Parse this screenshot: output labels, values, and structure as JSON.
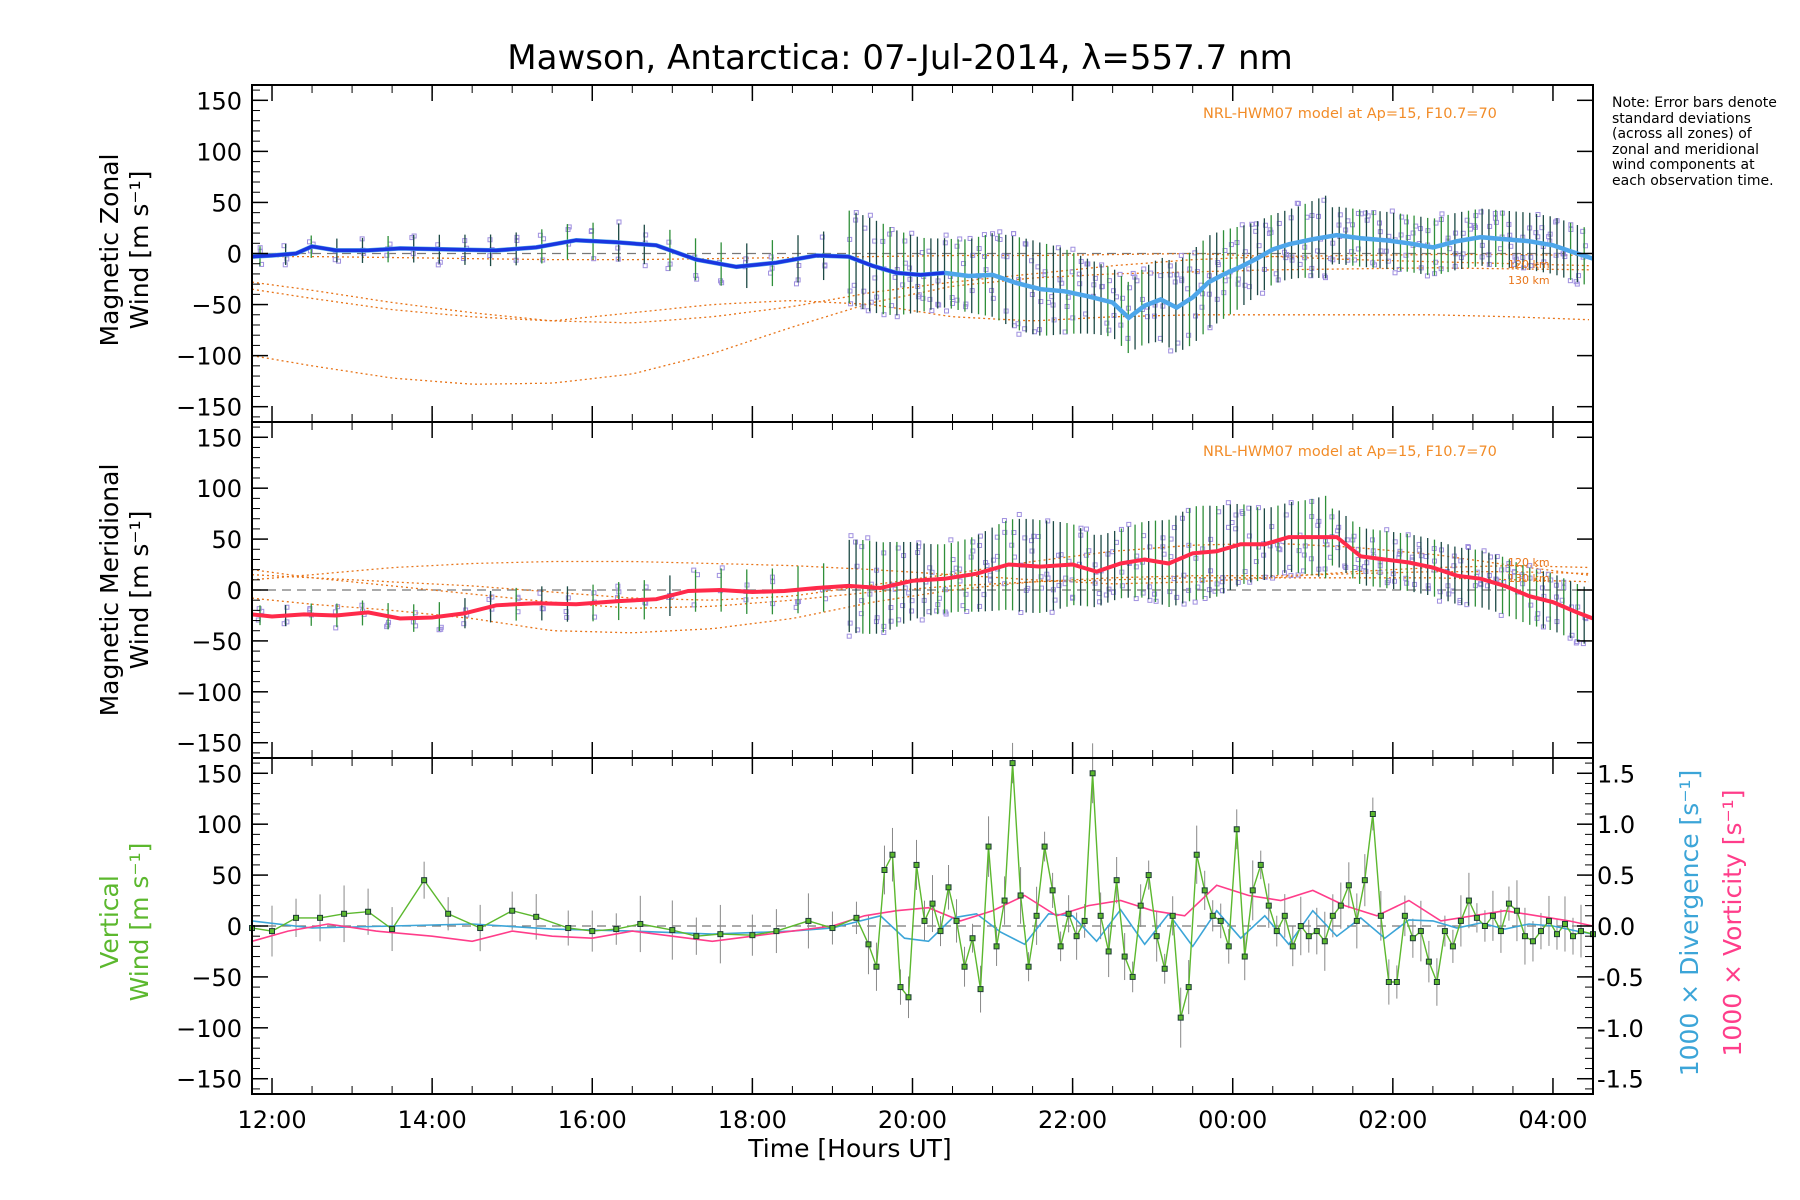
{
  "title": "Mawson, Antarctica: 07-Jul-2014, λ=557.7 nm",
  "note": "Note: Error bars denote standard deviations (across all zones) of zonal and meridional wind components at each observation time.",
  "model_label": "NRL-HWM07 model at Ap=15, F10.7=70",
  "altitude_labels": [
    "120 km",
    "130 km"
  ],
  "xlabel": "Time [Hours UT]",
  "colors": {
    "zonal": "#1a35e0",
    "zonal_light": "#4ea6ea",
    "meridional": "#ff2a4a",
    "model": "#e8751a",
    "vertical": "#5cb82e",
    "divergence": "#3ca5d8",
    "vorticity": "#ff3d8a",
    "raw": "#9f8fdf"
  },
  "chart_data": [
    {
      "type": "line",
      "name": "zonal",
      "ylabel_lines": [
        "Magnetic Zonal",
        "Wind [m s⁻¹]"
      ],
      "ylim": [
        -165,
        165
      ],
      "yticks": [
        -150,
        -100,
        -50,
        0,
        50,
        100,
        150
      ],
      "xlim": [
        11.75,
        28.5
      ],
      "xticks": [
        12,
        14,
        16,
        18,
        20,
        22,
        24,
        26,
        28
      ],
      "xticklabels": [
        "12:00",
        "14:00",
        "16:00",
        "18:00",
        "20:00",
        "22:00",
        "00:00",
        "02:00",
        "04:00"
      ],
      "series": [
        {
          "x": [
            11.75,
            12,
            12.3,
            12.5,
            12.8,
            13.2,
            13.6,
            14.2,
            14.8,
            15.3,
            15.8,
            16.3,
            16.8,
            17.3,
            17.8,
            18.3,
            18.8,
            19.2,
            19.5,
            19.8,
            20.1,
            20.4,
            20.7,
            21.0,
            21.3,
            21.6,
            21.9,
            22.2,
            22.5,
            22.7,
            22.9,
            23.1,
            23.3,
            23.5,
            23.7,
            23.9,
            24.1,
            24.3,
            24.5,
            24.7,
            25.0,
            25.3,
            25.6,
            25.9,
            26.2,
            26.5,
            26.8,
            27.1,
            27.4,
            27.7,
            28.0,
            28.3,
            28.5
          ],
          "y": [
            -3,
            -2,
            0,
            7,
            3,
            3,
            5,
            4,
            3,
            6,
            13,
            11,
            8,
            -6,
            -13,
            -9,
            -2,
            -3,
            -12,
            -19,
            -21,
            -19,
            -22,
            -21,
            -29,
            -35,
            -37,
            -42,
            -48,
            -63,
            -51,
            -45,
            -53,
            -43,
            -28,
            -20,
            -13,
            -5,
            4,
            9,
            14,
            18,
            15,
            13,
            10,
            6,
            12,
            16,
            14,
            12,
            8,
            0,
            -5
          ]
        }
      ],
      "model_curves_y": {
        "x": [
          11.75,
          12.5,
          13.5,
          14.5,
          15.5,
          16.5,
          17.5,
          18.5,
          19.5,
          20.5,
          21.5,
          22.5,
          23.5,
          24.5,
          25.5,
          26.5,
          27.5,
          28.5
        ],
        "curves": [
          [
            -28,
            -36,
            -48,
            -58,
            -66,
            -68,
            -62,
            -52,
            -38,
            -28,
            -20,
            -12,
            -6,
            -3,
            -2,
            -1,
            -1,
            -2
          ],
          [
            -100,
            -110,
            -122,
            -128,
            -127,
            -118,
            -98,
            -72,
            -48,
            -32,
            -24,
            -20,
            -18,
            -16,
            -15,
            -14,
            -15,
            -16
          ],
          [
            -35,
            -44,
            -55,
            -62,
            -66,
            -58,
            -50,
            -46,
            -50,
            -62,
            -66,
            -62,
            -60,
            -60,
            -60,
            -60,
            -62,
            -65
          ],
          [
            -3,
            -3,
            -4,
            -5,
            -6,
            -6,
            -5,
            -4,
            -3,
            -2,
            -2,
            -1,
            0,
            -3,
            -6,
            -8,
            -10,
            -12
          ]
        ]
      }
    },
    {
      "type": "line",
      "name": "meridional",
      "ylabel_lines": [
        "Magnetic Meridional",
        "Wind [m s⁻¹]"
      ],
      "ylim": [
        -165,
        165
      ],
      "yticks": [
        -150,
        -100,
        -50,
        0,
        50,
        100,
        150
      ],
      "xlim": [
        11.75,
        28.5
      ],
      "xticks": [
        12,
        14,
        16,
        18,
        20,
        22,
        24,
        26,
        28
      ],
      "series": [
        {
          "x": [
            11.75,
            12,
            12.4,
            12.8,
            13.2,
            13.6,
            14.0,
            14.4,
            14.8,
            15.3,
            15.8,
            16.3,
            16.8,
            17.2,
            17.6,
            18.0,
            18.4,
            18.8,
            19.2,
            19.6,
            20.0,
            20.4,
            20.8,
            21.2,
            21.6,
            22.0,
            22.3,
            22.6,
            22.9,
            23.2,
            23.5,
            23.8,
            24.1,
            24.4,
            24.7,
            25.0,
            25.3,
            25.6,
            25.9,
            26.2,
            26.5,
            26.8,
            27.1,
            27.4,
            27.7,
            28.0,
            28.3,
            28.5
          ],
          "y": [
            -24,
            -26,
            -24,
            -25,
            -22,
            -28,
            -27,
            -23,
            -15,
            -13,
            -14,
            -11,
            -9,
            -1,
            0,
            -2,
            -1,
            2,
            4,
            2,
            9,
            11,
            16,
            25,
            23,
            25,
            18,
            26,
            30,
            26,
            36,
            38,
            45,
            45,
            52,
            52,
            52,
            33,
            30,
            27,
            22,
            14,
            11,
            4,
            -6,
            -12,
            -22,
            -28
          ]
        }
      ],
      "model_curves_y": {
        "x": [
          11.75,
          12.5,
          13.5,
          14.5,
          15.5,
          16.5,
          17.5,
          18.5,
          19.5,
          20.5,
          21.5,
          22.5,
          23.5,
          24.5,
          25.5,
          26.5,
          27.5,
          28.5
        ],
        "curves": [
          [
            15,
            12,
            8,
            4,
            -2,
            -8,
            -10,
            -6,
            5,
            16,
            28,
            38,
            44,
            46,
            42,
            35,
            24,
            14
          ],
          [
            10,
            15,
            22,
            26,
            28,
            28,
            26,
            24,
            20,
            15,
            10,
            6,
            8,
            12,
            18,
            22,
            24,
            22
          ],
          [
            -8,
            -14,
            -20,
            -28,
            -40,
            -42,
            -38,
            -28,
            -12,
            0,
            8,
            12,
            14,
            14,
            16,
            18,
            18,
            16
          ],
          [
            20,
            12,
            4,
            -4,
            -12,
            -18,
            -16,
            -10,
            -2,
            4,
            8,
            10,
            12,
            12,
            12,
            12,
            10,
            8
          ]
        ]
      }
    },
    {
      "type": "line",
      "name": "vertical",
      "ylabel_lines": [
        "Vertical",
        "Wind [m s⁻¹]"
      ],
      "y2label_lines": [
        "1000 × Divergence [s⁻¹]",
        "1000 × Vorticity [s⁻¹]"
      ],
      "ylim": [
        -165,
        165
      ],
      "yticks": [
        -150,
        -100,
        -50,
        0,
        50,
        100,
        150
      ],
      "y2lim": [
        -1.65,
        1.65
      ],
      "y2ticks": [
        -1.5,
        -1.0,
        -0.5,
        0.0,
        0.5,
        1.0,
        1.5
      ],
      "xlim": [
        11.75,
        28.5
      ],
      "xticks": [
        12,
        14,
        16,
        18,
        20,
        22,
        24,
        26,
        28
      ],
      "series": [
        {
          "name": "vertical",
          "x": [
            11.75,
            12,
            12.3,
            12.6,
            12.9,
            13.2,
            13.5,
            13.9,
            14.2,
            14.6,
            15.0,
            15.3,
            15.7,
            16.0,
            16.3,
            16.6,
            17.0,
            17.3,
            17.6,
            18.0,
            18.3,
            18.7,
            19.0,
            19.3,
            19.45,
            19.55,
            19.65,
            19.75,
            19.85,
            19.95,
            20.05,
            20.15,
            20.25,
            20.35,
            20.45,
            20.55,
            20.65,
            20.75,
            20.85,
            20.95,
            21.05,
            21.15,
            21.25,
            21.35,
            21.45,
            21.55,
            21.65,
            21.75,
            21.85,
            21.95,
            22.05,
            22.15,
            22.25,
            22.35,
            22.45,
            22.55,
            22.65,
            22.75,
            22.85,
            22.95,
            23.05,
            23.15,
            23.25,
            23.35,
            23.45,
            23.55,
            23.65,
            23.75,
            23.85,
            23.95,
            24.05,
            24.15,
            24.25,
            24.35,
            24.45,
            24.55,
            24.65,
            24.75,
            24.85,
            24.95,
            25.05,
            25.15,
            25.25,
            25.35,
            25.45,
            25.55,
            25.65,
            25.75,
            25.85,
            25.95,
            26.05,
            26.15,
            26.25,
            26.35,
            26.45,
            26.55,
            26.65,
            26.75,
            26.85,
            26.95,
            27.05,
            27.15,
            27.25,
            27.35,
            27.45,
            27.55,
            27.65,
            27.75,
            27.85,
            27.95,
            28.05,
            28.15,
            28.25,
            28.35,
            28.5
          ],
          "y": [
            -2,
            -5,
            8,
            8,
            12,
            14,
            -3,
            45,
            12,
            -2,
            15,
            9,
            -2,
            -5,
            -3,
            2,
            -4,
            -10,
            -8,
            -9,
            -5,
            5,
            -2,
            8,
            -18,
            -40,
            55,
            70,
            -60,
            -70,
            60,
            5,
            22,
            -5,
            38,
            5,
            -40,
            -12,
            -62,
            78,
            -20,
            25,
            160,
            30,
            -40,
            10,
            78,
            35,
            -20,
            12,
            -10,
            5,
            150,
            10,
            -25,
            45,
            -30,
            -50,
            20,
            50,
            -10,
            -42,
            10,
            -90,
            -60,
            70,
            35,
            10,
            5,
            -20,
            95,
            -30,
            35,
            60,
            20,
            -5,
            10,
            -20,
            0,
            -10,
            -5,
            -15,
            10,
            20,
            40,
            5,
            45,
            110,
            10,
            -55,
            -55,
            10,
            -12,
            -5,
            -35,
            -55,
            -5,
            -20,
            5,
            25,
            8,
            0,
            10,
            -5,
            22,
            15,
            -10,
            -15,
            -5,
            5,
            -8,
            2,
            -10,
            -5,
            -8
          ]
        },
        {
          "name": "divergence",
          "x": [
            11.75,
            12.5,
            13.5,
            14.5,
            15.5,
            16.5,
            17.5,
            18.5,
            19.0,
            19.3,
            19.6,
            19.9,
            20.2,
            20.5,
            20.8,
            21.1,
            21.4,
            21.7,
            22.0,
            22.3,
            22.6,
            22.9,
            23.2,
            23.5,
            23.8,
            24.1,
            24.4,
            24.7,
            25.0,
            25.3,
            25.6,
            25.9,
            26.2,
            26.5,
            26.8,
            27.1,
            27.4,
            27.7,
            28.0,
            28.3,
            28.5
          ],
          "y": [
            0.05,
            -0.02,
            0.0,
            0.02,
            -0.03,
            -0.05,
            -0.08,
            -0.05,
            -0.02,
            0.04,
            0.1,
            -0.12,
            -0.15,
            0.08,
            0.12,
            -0.06,
            -0.18,
            0.12,
            0.1,
            -0.15,
            0.16,
            -0.18,
            0.12,
            -0.2,
            0.15,
            -0.12,
            0.1,
            -0.18,
            0.15,
            -0.1,
            0.08,
            -0.12,
            0.06,
            0.05,
            -0.02,
            0.03,
            -0.03,
            0.02,
            0.0,
            -0.05,
            -0.08
          ]
        },
        {
          "name": "vorticity",
          "x": [
            11.75,
            12.2,
            12.7,
            13.3,
            14.0,
            14.5,
            15.0,
            15.5,
            16.0,
            16.5,
            17.0,
            17.5,
            18.0,
            18.5,
            19.0,
            19.4,
            19.8,
            20.2,
            20.6,
            21.0,
            21.4,
            21.8,
            22.2,
            22.6,
            23.0,
            23.4,
            23.8,
            24.2,
            24.6,
            25.0,
            25.4,
            25.8,
            26.2,
            26.6,
            27.0,
            27.4,
            27.8,
            28.2,
            28.5
          ],
          "y": [
            -0.15,
            -0.05,
            0.02,
            -0.05,
            -0.1,
            -0.15,
            -0.05,
            -0.1,
            -0.12,
            -0.05,
            -0.1,
            -0.15,
            -0.1,
            -0.05,
            0.0,
            0.1,
            0.15,
            0.18,
            0.05,
            0.15,
            0.3,
            0.1,
            0.2,
            0.25,
            0.15,
            0.1,
            0.4,
            0.3,
            0.25,
            0.35,
            0.2,
            0.1,
            0.25,
            0.05,
            0.1,
            0.15,
            0.1,
            0.05,
            0.0
          ]
        }
      ]
    }
  ]
}
